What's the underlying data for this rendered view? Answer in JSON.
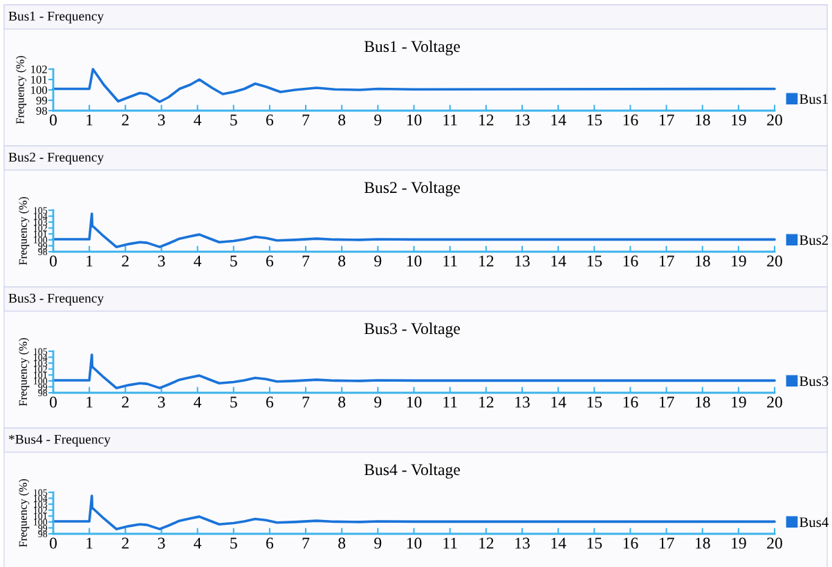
{
  "chart_data": [
    {
      "type": "line",
      "title": "Bus1 - Voltage",
      "ylabel": "Frequency (%)",
      "annotations": [
        "Bus1 - Frequency"
      ],
      "xlim": [
        0,
        20
      ],
      "xticks": [
        0,
        1,
        2,
        3,
        4,
        5,
        6,
        7,
        8,
        9,
        10,
        11,
        12,
        13,
        14,
        15,
        16,
        17,
        18,
        19,
        20
      ],
      "ylim": [
        98,
        102
      ],
      "yticks": [
        98,
        99,
        100,
        101,
        102
      ],
      "grid": false,
      "legend": "right",
      "series": [
        {
          "name": "Bus1",
          "color": "#1a73d9",
          "x": [
            0,
            1.0,
            1.1,
            1.4,
            1.8,
            2.1,
            2.4,
            2.6,
            2.95,
            3.2,
            3.5,
            3.8,
            4.05,
            4.4,
            4.7,
            5.0,
            5.3,
            5.6,
            5.9,
            6.3,
            6.7,
            7.3,
            7.8,
            8.5,
            9,
            10,
            20
          ],
          "values": [
            100.1,
            100.1,
            102,
            100.5,
            98.9,
            99.3,
            99.7,
            99.6,
            98.85,
            99.3,
            100.1,
            100.5,
            101.0,
            100.2,
            99.6,
            99.8,
            100.1,
            100.6,
            100.3,
            99.8,
            100.0,
            100.2,
            100.05,
            100.0,
            100.1,
            100.05,
            100.1
          ]
        }
      ]
    },
    {
      "type": "line",
      "title": "Bus2 - Voltage",
      "ylabel": "Frequency (%)",
      "annotations": [
        "Bus2 - Frequency"
      ],
      "xlim": [
        0,
        20
      ],
      "xticks": [
        0,
        1,
        2,
        3,
        4,
        5,
        6,
        7,
        8,
        9,
        10,
        11,
        12,
        13,
        14,
        15,
        16,
        17,
        18,
        19,
        20
      ],
      "ylim": [
        98,
        105
      ],
      "yticks": [
        98,
        99,
        100,
        101,
        102,
        103,
        104,
        105
      ],
      "grid": false,
      "legend": "right",
      "series": [
        {
          "name": "Bus2",
          "color": "#1a73d9",
          "x": [
            0,
            1.0,
            1.07,
            1.08,
            1.4,
            1.75,
            2.1,
            2.4,
            2.6,
            2.95,
            3.2,
            3.5,
            3.8,
            4.05,
            4.3,
            4.6,
            5.0,
            5.3,
            5.6,
            5.9,
            6.2,
            6.7,
            7.3,
            7.8,
            8.5,
            9,
            10,
            20
          ],
          "values": [
            100.1,
            100.1,
            104.4,
            102.4,
            100.6,
            98.8,
            99.3,
            99.6,
            99.5,
            98.8,
            99.4,
            100.2,
            100.6,
            100.9,
            100.3,
            99.6,
            99.8,
            100.1,
            100.5,
            100.3,
            99.9,
            100.0,
            100.2,
            100.05,
            100.0,
            100.1,
            100.05,
            100.05
          ]
        }
      ]
    },
    {
      "type": "line",
      "title": "Bus3 - Voltage",
      "ylabel": "Frequency (%)",
      "annotations": [
        "Bus3 - Frequency"
      ],
      "xlim": [
        0,
        20
      ],
      "xticks": [
        0,
        1,
        2,
        3,
        4,
        5,
        6,
        7,
        8,
        9,
        10,
        11,
        12,
        13,
        14,
        15,
        16,
        17,
        18,
        19,
        20
      ],
      "ylim": [
        98,
        105
      ],
      "yticks": [
        98,
        99,
        100,
        101,
        102,
        103,
        104,
        105
      ],
      "grid": false,
      "legend": "right",
      "series": [
        {
          "name": "Bus3",
          "color": "#1a73d9",
          "x": [
            0,
            1.0,
            1.07,
            1.08,
            1.4,
            1.75,
            2.1,
            2.4,
            2.6,
            2.95,
            3.2,
            3.5,
            3.8,
            4.05,
            4.3,
            4.6,
            5.0,
            5.3,
            5.6,
            5.9,
            6.2,
            6.7,
            7.3,
            7.8,
            8.5,
            9,
            10,
            20
          ],
          "values": [
            100.1,
            100.1,
            104.4,
            102.4,
            100.6,
            98.8,
            99.3,
            99.6,
            99.5,
            98.8,
            99.4,
            100.2,
            100.6,
            100.9,
            100.3,
            99.6,
            99.8,
            100.1,
            100.5,
            100.3,
            99.9,
            100.0,
            100.2,
            100.05,
            100.0,
            100.1,
            100.05,
            100.05
          ]
        }
      ]
    },
    {
      "type": "line",
      "title": "Bus4 - Voltage",
      "ylabel": "Frequency (%)",
      "annotations": [
        "*Bus4 - Frequency"
      ],
      "xlim": [
        0,
        20
      ],
      "xticks": [
        0,
        1,
        2,
        3,
        4,
        5,
        6,
        7,
        8,
        9,
        10,
        11,
        12,
        13,
        14,
        15,
        16,
        17,
        18,
        19,
        20
      ],
      "ylim": [
        98,
        105
      ],
      "yticks": [
        98,
        99,
        100,
        101,
        102,
        103,
        104,
        105
      ],
      "grid": false,
      "legend": "right",
      "series": [
        {
          "name": "Bus4",
          "color": "#1a73d9",
          "x": [
            0,
            1.0,
            1.07,
            1.08,
            1.4,
            1.75,
            2.1,
            2.4,
            2.6,
            2.95,
            3.2,
            3.5,
            3.8,
            4.05,
            4.3,
            4.6,
            5.0,
            5.3,
            5.6,
            5.9,
            6.2,
            6.7,
            7.3,
            7.8,
            8.5,
            9,
            10,
            20
          ],
          "values": [
            100.1,
            100.1,
            104.4,
            102.4,
            100.6,
            98.8,
            99.3,
            99.6,
            99.5,
            98.8,
            99.4,
            100.2,
            100.6,
            100.9,
            100.3,
            99.6,
            99.8,
            100.1,
            100.5,
            100.3,
            99.9,
            100.0,
            100.2,
            100.05,
            100.0,
            100.1,
            100.05,
            100.05
          ]
        }
      ]
    }
  ]
}
